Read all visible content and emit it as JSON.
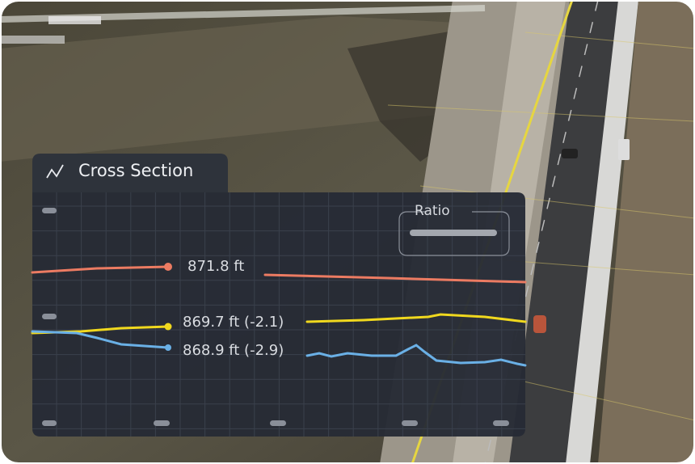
{
  "panel": {
    "title": "Cross Section",
    "legend": {
      "label": "Ratio"
    },
    "readouts": [
      "871.8 ft",
      "869.7 ft (-2.1)",
      "868.9 ft (-2.9)"
    ]
  }
}
